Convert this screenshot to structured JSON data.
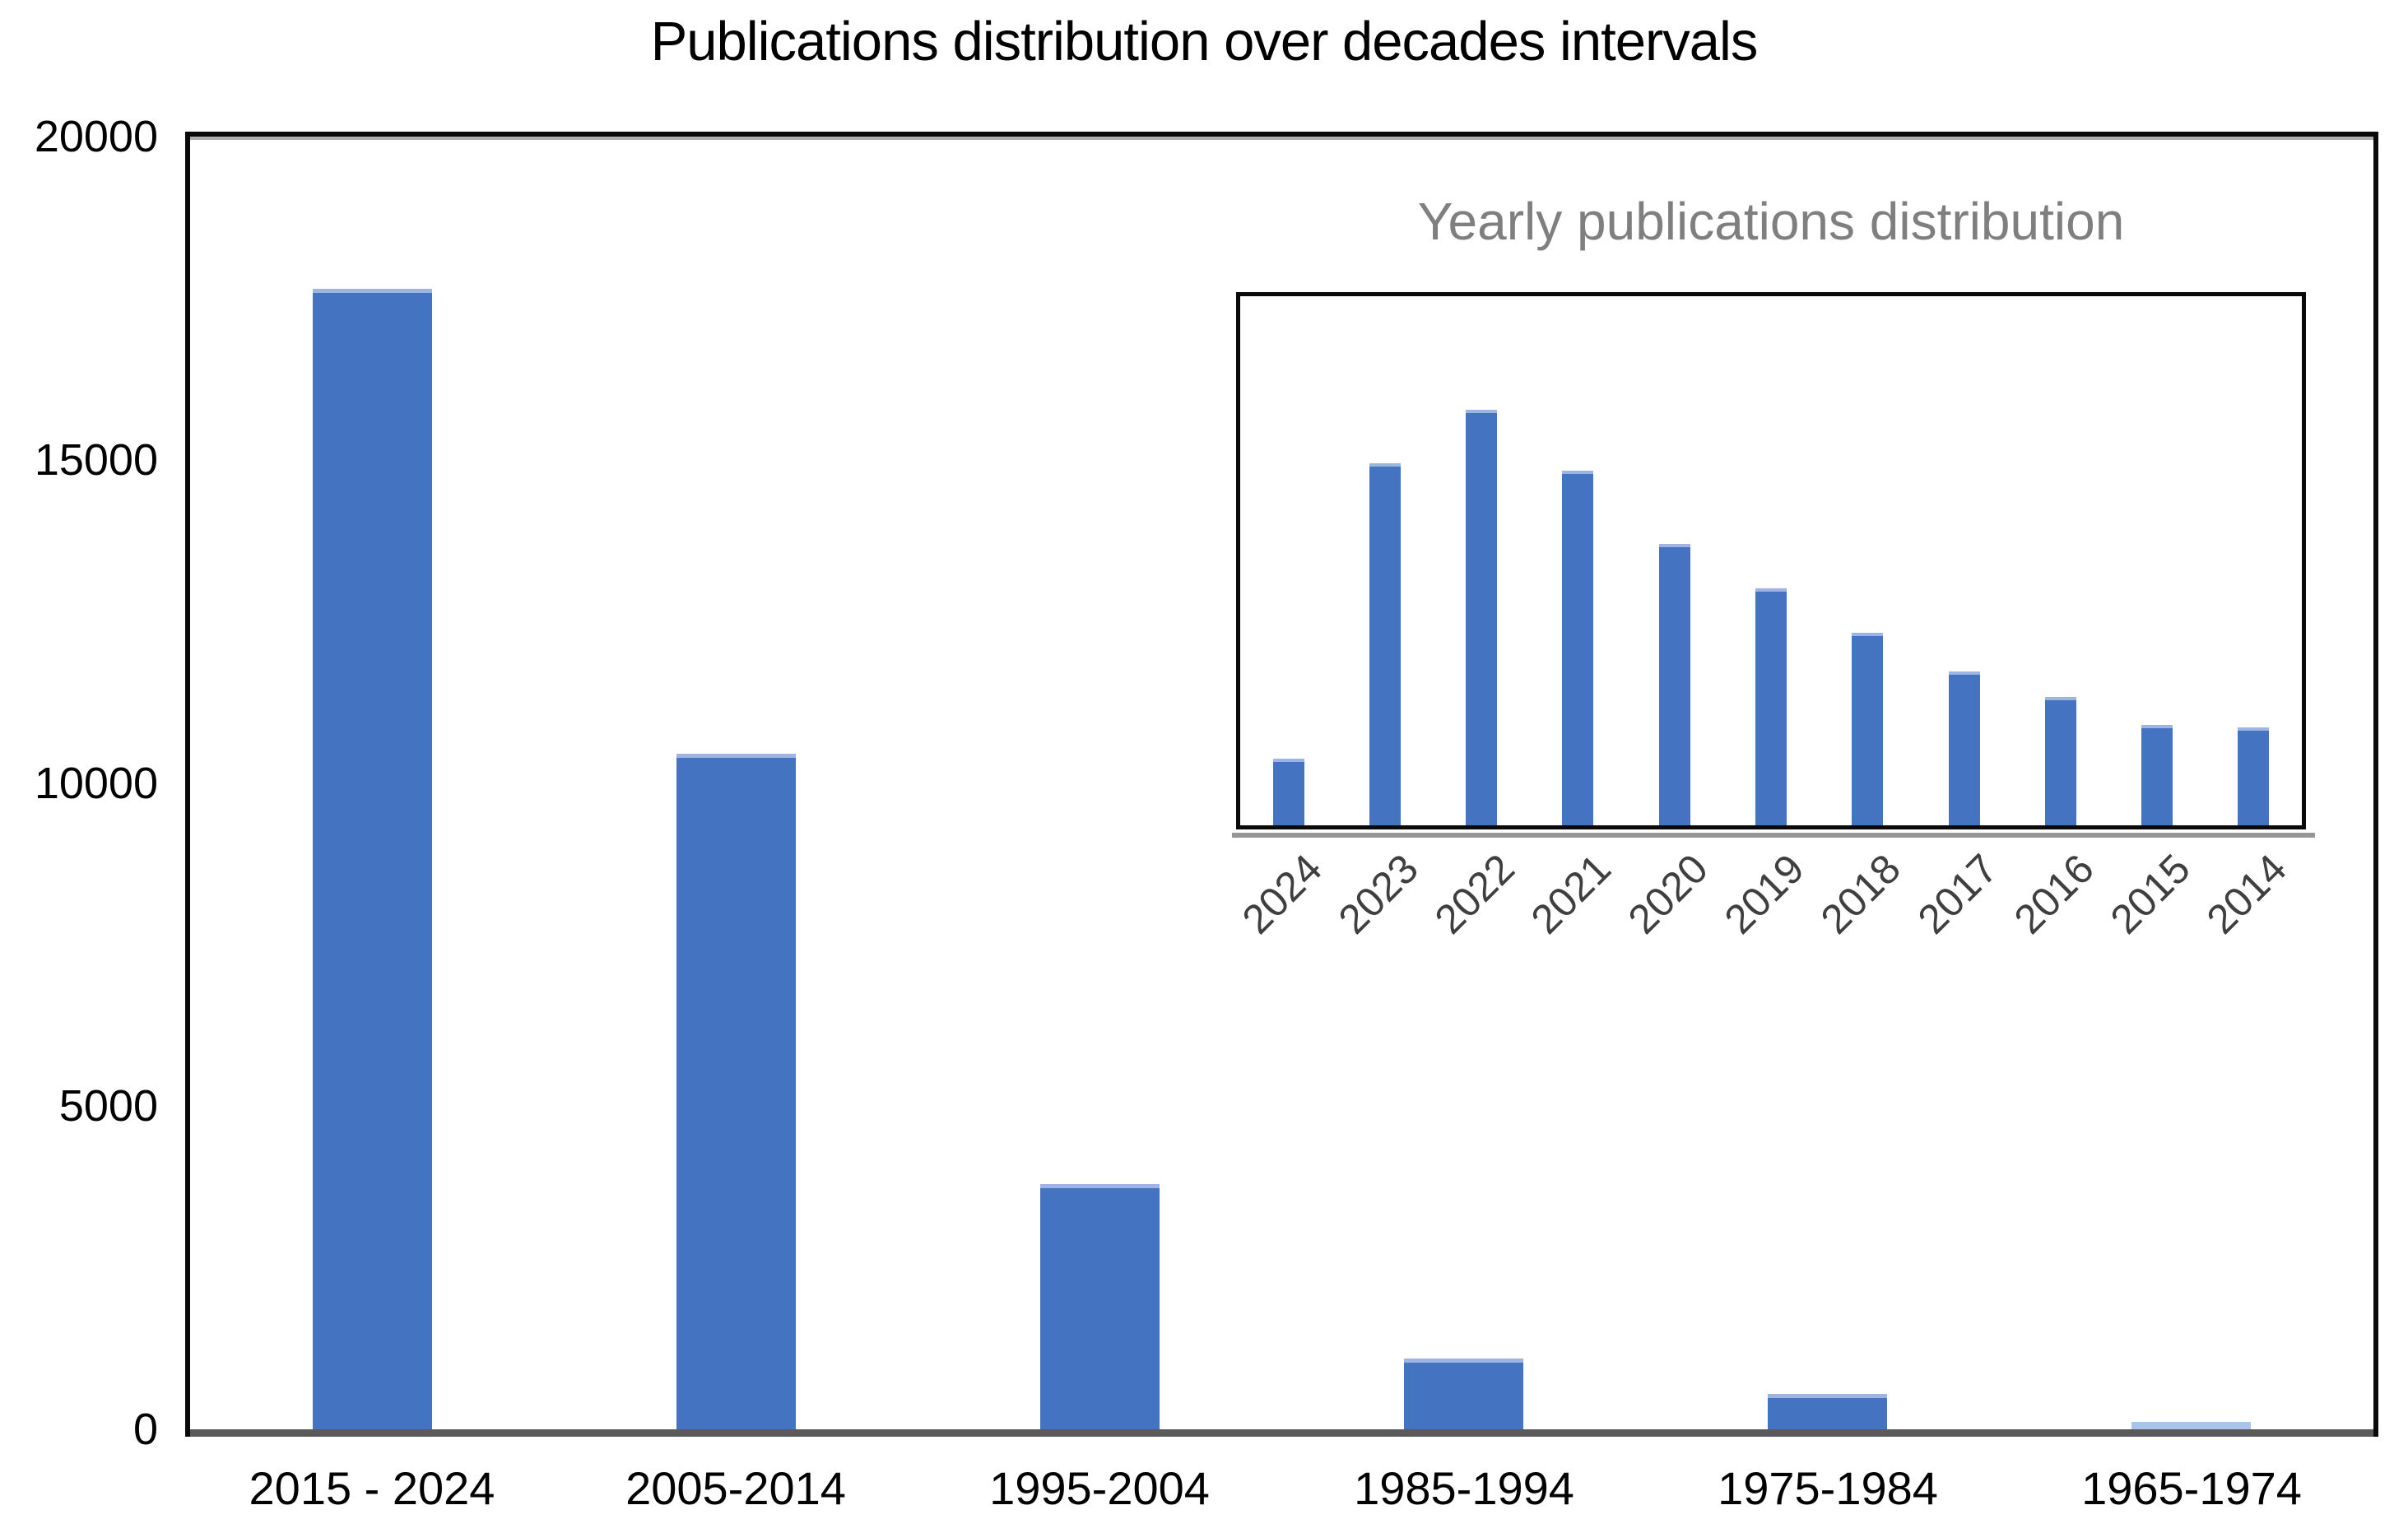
{
  "chart_data": [
    {
      "id": "decades-chart",
      "type": "bar",
      "title": "Publications distribution over decades intervals",
      "categories": [
        "2015 - 2024",
        "2005-2014",
        "1995-2004",
        "1985-1994",
        "1975-1984",
        "1965-1974"
      ],
      "values": [
        17650,
        10450,
        3800,
        1100,
        550,
        120
      ],
      "ytick_values": [
        0,
        5000,
        10000,
        15000,
        20000
      ],
      "ytick_labels": [
        "0",
        "5000",
        "10000",
        "15000",
        "20000"
      ],
      "ylim": [
        0,
        20000
      ],
      "xlabel": "",
      "ylabel": "",
      "grid": false,
      "legend": null,
      "bar_color": "#4473C2",
      "bar_top_edge_color": "#9cb5e2",
      "last_bar_color": "#a9c4ea",
      "axis_line_color": "#5a5a5a",
      "border_color": "#0a0a0a",
      "title_color": "#000000"
    },
    {
      "id": "yearly-inset-chart",
      "type": "bar",
      "title": "Yearly publications distribution",
      "categories": [
        "2024",
        "2023",
        "2022",
        "2021",
        "2020",
        "2019",
        "2018",
        "2017",
        "2016",
        "2015",
        "2014"
      ],
      "values": [
        500,
        2700,
        3100,
        2650,
        2100,
        1770,
        1440,
        1150,
        960,
        750,
        730
      ],
      "ylim": [
        0,
        3950
      ],
      "yaxis_labels_visible": false,
      "grid": false,
      "legend": null,
      "tick_label_rotation_deg": 45,
      "bar_color": "#4473C2",
      "bar_top_edge_color": "#9cb5e2",
      "border_color": "#0a0a0a",
      "title_color": "#7f7f7f",
      "tick_label_color": "#3f3f3f"
    }
  ]
}
